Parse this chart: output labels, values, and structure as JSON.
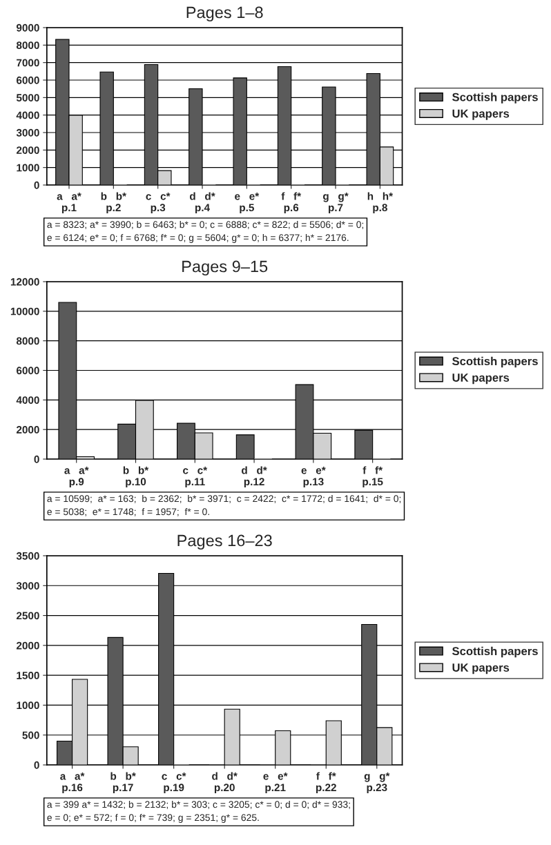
{
  "chart_data": [
    {
      "type": "bar",
      "title": "Pages 1–8",
      "categories": [
        "a   a*\np.1",
        "b   b*\np.2",
        "c   c*\np.3",
        "d   d*\np.4",
        "e   e*\np.5",
        "f   f*\np.6",
        "g   g*\np.7",
        "h   h*\np.8"
      ],
      "series": [
        {
          "name": "Scottish papers",
          "color": "#5a5a5a",
          "values": [
            8323,
            6463,
            6888,
            5506,
            6124,
            6768,
            5604,
            6377
          ]
        },
        {
          "name": "UK papers",
          "color": "#d0d0d0",
          "values": [
            3990,
            0,
            822,
            0,
            0,
            0,
            0,
            2176
          ]
        }
      ],
      "ylim": [
        0,
        9000
      ],
      "yticks": [
        0,
        1000,
        2000,
        3000,
        4000,
        5000,
        6000,
        7000,
        8000,
        9000
      ],
      "grid": "y",
      "legend": "right",
      "annotations": [
        "a = 8323; a* = 3990; b = 6463; b* = 0; c = 6888; c* = 822; d = 5506; d* = 0;\ne = 6124; e* = 0; f = 6768; f* = 0; g = 5604; g* = 0; h = 6377; h* = 2176."
      ]
    },
    {
      "type": "bar",
      "title": "Pages 9–15",
      "categories": [
        "a   a*\np.9",
        "b   b*\np.10",
        "c   c*\np.11",
        "d   d*\np.12",
        "e   e*\np.13",
        "f   f*\np.15"
      ],
      "series": [
        {
          "name": "Scottish papers",
          "color": "#5a5a5a",
          "values": [
            10599,
            2362,
            2422,
            1641,
            5038,
            1957
          ]
        },
        {
          "name": "UK papers",
          "color": "#d0d0d0",
          "values": [
            163,
            3971,
            1772,
            0,
            1748,
            0
          ]
        }
      ],
      "ylim": [
        0,
        12000
      ],
      "yticks": [
        0,
        2000,
        4000,
        6000,
        8000,
        10000,
        12000
      ],
      "grid": "y",
      "legend": "right",
      "annotations": [
        "a = 10599;  a* = 163;  b = 2362;  b* = 3971;  c = 2422;  c* = 1772; d = 1641;  d* = 0;\ne = 5038;  e* = 1748;  f = 1957;  f* = 0."
      ]
    },
    {
      "type": "bar",
      "title": "Pages 16–23",
      "categories": [
        "a   a*\np.16",
        "b   b*\np.17",
        "c   c*\np.19",
        "d   d*\np.20",
        "e   e*\np.21",
        "f   f*\np.22",
        "g   g*\np.23"
      ],
      "series": [
        {
          "name": "Scottish papers",
          "color": "#5a5a5a",
          "values": [
            399,
            2132,
            3205,
            0,
            0,
            0,
            2351
          ]
        },
        {
          "name": "UK papers",
          "color": "#d0d0d0",
          "values": [
            1432,
            303,
            0,
            933,
            572,
            739,
            625
          ]
        }
      ],
      "ylim": [
        0,
        3500
      ],
      "yticks": [
        0,
        500,
        1000,
        1500,
        2000,
        2500,
        3000,
        3500
      ],
      "grid": "y",
      "legend": "right",
      "annotations": [
        "a = 399 a* = 1432; b = 2132; b* = 303; c = 3205; c* = 0; d = 0; d* = 933;\ne = 0; e* = 572; f = 0; f* = 739; g = 2351; g* = 625."
      ]
    }
  ]
}
